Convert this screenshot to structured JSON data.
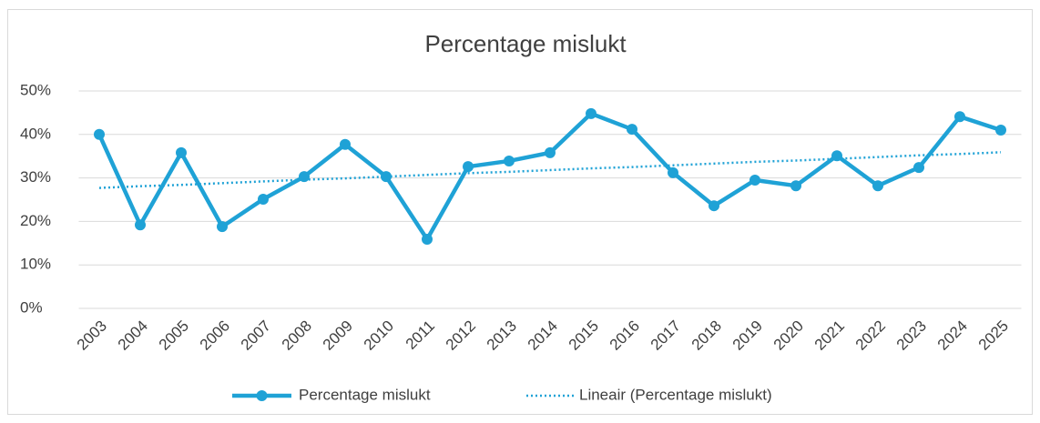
{
  "chart_data": {
    "type": "line",
    "title": "Percentage mislukt",
    "categories": [
      "2003",
      "2004",
      "2005",
      "2006",
      "2007",
      "2008",
      "2009",
      "2010",
      "2011",
      "2012",
      "2013",
      "2014",
      "2015",
      "2016",
      "2017",
      "2018",
      "2019",
      "2020",
      "2021",
      "2022",
      "2023",
      "2024",
      "2025"
    ],
    "series": [
      {
        "name": "Percentage mislukt",
        "color": "#1fa2d6",
        "markers": true,
        "dash": "solid",
        "values": [
          40.0,
          19.2,
          35.8,
          18.8,
          25.1,
          30.3,
          37.7,
          30.3,
          15.9,
          32.6,
          33.9,
          35.8,
          44.8,
          41.2,
          31.2,
          23.6,
          29.5,
          28.2,
          35.1,
          28.2,
          32.4,
          44.1,
          41.0
        ]
      },
      {
        "name": "Lineair (Percentage mislukt)",
        "color": "#1fa2d6",
        "markers": false,
        "dash": "dotted",
        "values": [
          27.7,
          28.1,
          28.4,
          28.8,
          29.2,
          29.6,
          29.9,
          30.3,
          30.7,
          31.1,
          31.4,
          31.8,
          32.2,
          32.5,
          32.9,
          33.3,
          33.7,
          34.0,
          34.4,
          34.8,
          35.2,
          35.5,
          35.9
        ]
      }
    ],
    "ylim": [
      0,
      50
    ],
    "yticks": [
      {
        "value": 0,
        "label": "0%"
      },
      {
        "value": 10,
        "label": "10%"
      },
      {
        "value": 20,
        "label": "20%"
      },
      {
        "value": 30,
        "label": "30%"
      },
      {
        "value": 40,
        "label": "40%"
      },
      {
        "value": 50,
        "label": "50%"
      }
    ],
    "grid": true,
    "legend": "bottom"
  }
}
